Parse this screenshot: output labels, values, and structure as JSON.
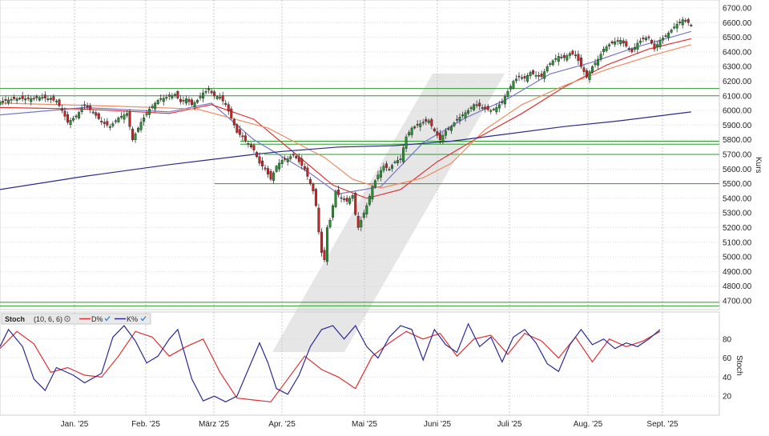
{
  "chart_data": [
    {
      "type": "candlestick",
      "y_axis_label": "Kurs",
      "x_tick_labels": [
        "Jan. '25",
        "Feb. '25",
        "März '25",
        "Apr. '25",
        "Mai '25",
        "Juni '25",
        "Juli '25",
        "Aug. '25",
        "Sept. '25"
      ],
      "y_tick_labels": [
        "4700.00",
        "4800.00",
        "4900.00",
        "5000.00",
        "5100.00",
        "5200.00",
        "5300.00",
        "5400.00",
        "5500.00",
        "5600.00",
        "5700.00",
        "5800.00",
        "5900.00",
        "6000.00",
        "6100.00",
        "6200.00",
        "6300.00",
        "6400.00",
        "6500.00",
        "6600.00",
        "6700.00"
      ],
      "ylim": [
        4680,
        6720
      ],
      "horizontal_levels": [
        6150,
        6100,
        5790,
        5770,
        5700,
        5500,
        4690,
        4665
      ],
      "close_path": [
        [
          0,
          6060
        ],
        [
          5,
          6080
        ],
        [
          10,
          6080
        ],
        [
          15,
          6090
        ],
        [
          20,
          6065
        ],
        [
          22,
          6000
        ],
        [
          24,
          5920
        ],
        [
          27,
          5960
        ],
        [
          30,
          6040
        ],
        [
          33,
          5990
        ],
        [
          36,
          5920
        ],
        [
          39,
          5890
        ],
        [
          42,
          5950
        ],
        [
          45,
          5980
        ],
        [
          47,
          5800
        ],
        [
          50,
          5920
        ],
        [
          53,
          6010
        ],
        [
          56,
          6070
        ],
        [
          59,
          6090
        ],
        [
          62,
          6110
        ],
        [
          64,
          6060
        ],
        [
          66,
          6080
        ],
        [
          68,
          6040
        ],
        [
          70,
          6070
        ],
        [
          72,
          6120
        ],
        [
          74,
          6140
        ],
        [
          76,
          6100
        ],
        [
          78,
          6090
        ],
        [
          80,
          6040
        ],
        [
          82,
          5950
        ],
        [
          84,
          5850
        ],
        [
          86,
          5820
        ],
        [
          88,
          5770
        ],
        [
          90,
          5730
        ],
        [
          92,
          5640
        ],
        [
          94,
          5600
        ],
        [
          96,
          5530
        ],
        [
          98,
          5620
        ],
        [
          100,
          5660
        ],
        [
          102,
          5670
        ],
        [
          104,
          5700
        ],
        [
          106,
          5650
        ],
        [
          108,
          5600
        ],
        [
          110,
          5500
        ],
        [
          111,
          5450
        ],
        [
          112,
          5350
        ],
        [
          113,
          5170
        ],
        [
          114,
          5030
        ],
        [
          115,
          4980
        ],
        [
          116,
          5200
        ],
        [
          117,
          5250
        ],
        [
          119,
          5450
        ],
        [
          121,
          5400
        ],
        [
          123,
          5380
        ],
        [
          125,
          5420
        ],
        [
          126,
          5290
        ],
        [
          127,
          5200
        ],
        [
          128,
          5250
        ],
        [
          130,
          5350
        ],
        [
          132,
          5480
        ],
        [
          134,
          5560
        ],
        [
          136,
          5620
        ],
        [
          138,
          5600
        ],
        [
          140,
          5650
        ],
        [
          142,
          5670
        ],
        [
          144,
          5820
        ],
        [
          146,
          5880
        ],
        [
          148,
          5900
        ],
        [
          150,
          5920
        ],
        [
          152,
          5930
        ],
        [
          154,
          5860
        ],
        [
          156,
          5800
        ],
        [
          158,
          5860
        ],
        [
          160,
          5890
        ],
        [
          162,
          5940
        ],
        [
          164,
          5970
        ],
        [
          166,
          6000
        ],
        [
          168,
          6040
        ],
        [
          170,
          6030
        ],
        [
          172,
          6010
        ],
        [
          174,
          6000
        ],
        [
          176,
          6020
        ],
        [
          178,
          6060
        ],
        [
          180,
          6130
        ],
        [
          182,
          6200
        ],
        [
          184,
          6230
        ],
        [
          186,
          6220
        ],
        [
          188,
          6260
        ],
        [
          190,
          6240
        ],
        [
          192,
          6230
        ],
        [
          194,
          6300
        ],
        [
          196,
          6340
        ],
        [
          198,
          6370
        ],
        [
          200,
          6360
        ],
        [
          202,
          6390
        ],
        [
          204,
          6380
        ],
        [
          206,
          6300
        ],
        [
          208,
          6230
        ],
        [
          210,
          6300
        ],
        [
          212,
          6350
        ],
        [
          214,
          6420
        ],
        [
          216,
          6450
        ],
        [
          218,
          6470
        ],
        [
          220,
          6480
        ],
        [
          222,
          6440
        ],
        [
          224,
          6400
        ],
        [
          226,
          6460
        ],
        [
          228,
          6490
        ],
        [
          230,
          6500
        ],
        [
          232,
          6420
        ],
        [
          234,
          6480
        ],
        [
          236,
          6510
        ],
        [
          238,
          6550
        ],
        [
          240,
          6590
        ],
        [
          242,
          6620
        ],
        [
          244,
          6600
        ],
        [
          245,
          6580
        ]
      ],
      "moving_averages": [
        {
          "color": "#7777cc",
          "period_label": "",
          "path": [
            [
              0,
              5970
            ],
            [
              30,
              6020
            ],
            [
              60,
              5990
            ],
            [
              75,
              6050
            ],
            [
              90,
              5800
            ],
            [
              110,
              5570
            ],
            [
              120,
              5430
            ],
            [
              135,
              5480
            ],
            [
              150,
              5780
            ],
            [
              165,
              5950
            ],
            [
              180,
              6080
            ],
            [
              195,
              6250
            ],
            [
              210,
              6330
            ],
            [
              225,
              6430
            ],
            [
              245,
              6540
            ]
          ]
        },
        {
          "color": "#e03030",
          "period_label": "",
          "path": [
            [
              0,
              6020
            ],
            [
              30,
              6010
            ],
            [
              60,
              5980
            ],
            [
              75,
              6040
            ],
            [
              90,
              5940
            ],
            [
              105,
              5700
            ],
            [
              118,
              5490
            ],
            [
              130,
              5400
            ],
            [
              142,
              5460
            ],
            [
              155,
              5650
            ],
            [
              170,
              5820
            ],
            [
              185,
              5980
            ],
            [
              200,
              6160
            ],
            [
              215,
              6310
            ],
            [
              230,
              6420
            ],
            [
              245,
              6490
            ]
          ]
        },
        {
          "color": "#f08a60",
          "period_label": "",
          "path": [
            [
              0,
              6050
            ],
            [
              40,
              6030
            ],
            [
              70,
              6010
            ],
            [
              95,
              5880
            ],
            [
              115,
              5680
            ],
            [
              125,
              5530
            ],
            [
              135,
              5470
            ],
            [
              150,
              5540
            ],
            [
              160,
              5640
            ],
            [
              172,
              5870
            ],
            [
              185,
              6040
            ],
            [
              200,
              6170
            ],
            [
              215,
              6280
            ],
            [
              230,
              6370
            ],
            [
              245,
              6450
            ]
          ]
        },
        {
          "color": "#2a2a8a",
          "period_label": "",
          "path": [
            [
              0,
              5460
            ],
            [
              30,
              5550
            ],
            [
              60,
              5630
            ],
            [
              90,
              5700
            ],
            [
              100,
              5720
            ],
            [
              120,
              5750
            ],
            [
              140,
              5760
            ],
            [
              160,
              5790
            ],
            [
              180,
              5840
            ],
            [
              200,
              5890
            ],
            [
              220,
              5930
            ],
            [
              245,
              5990
            ]
          ]
        }
      ]
    },
    {
      "type": "line",
      "title": "Stoch",
      "parameters": "(10, 6, 6)",
      "ylabel": "Stoch",
      "ylim": [
        0,
        100
      ],
      "y_ticks": [
        20,
        40,
        60,
        80
      ],
      "series": [
        {
          "name": "D%",
          "color": "#e03030",
          "points": [
            [
              0,
              70
            ],
            [
              6,
              88
            ],
            [
              12,
              75
            ],
            [
              18,
              45
            ],
            [
              24,
              50
            ],
            [
              30,
              42
            ],
            [
              36,
              40
            ],
            [
              42,
              62
            ],
            [
              48,
              88
            ],
            [
              54,
              82
            ],
            [
              60,
              62
            ],
            [
              66,
              72
            ],
            [
              72,
              80
            ],
            [
              78,
              45
            ],
            [
              84,
              18
            ],
            [
              90,
              16
            ],
            [
              96,
              14
            ],
            [
              102,
              38
            ],
            [
              108,
              62
            ],
            [
              114,
              48
            ],
            [
              120,
              40
            ],
            [
              126,
              28
            ],
            [
              132,
              62
            ],
            [
              138,
              76
            ],
            [
              144,
              88
            ],
            [
              150,
              80
            ],
            [
              156,
              86
            ],
            [
              162,
              62
            ],
            [
              168,
              80
            ],
            [
              174,
              84
            ],
            [
              180,
              64
            ],
            [
              186,
              86
            ],
            [
              192,
              78
            ],
            [
              198,
              60
            ],
            [
              204,
              82
            ],
            [
              210,
              56
            ],
            [
              216,
              80
            ],
            [
              222,
              72
            ],
            [
              228,
              78
            ],
            [
              234,
              88
            ]
          ]
        },
        {
          "name": "K%",
          "color": "#2a2a9a",
          "points": [
            [
              0,
              72
            ],
            [
              3,
              90
            ],
            [
              8,
              72
            ],
            [
              12,
              38
            ],
            [
              16,
              26
            ],
            [
              20,
              50
            ],
            [
              26,
              42
            ],
            [
              30,
              34
            ],
            [
              36,
              44
            ],
            [
              40,
              82
            ],
            [
              44,
              94
            ],
            [
              48,
              78
            ],
            [
              52,
              55
            ],
            [
              56,
              62
            ],
            [
              60,
              80
            ],
            [
              63,
              90
            ],
            [
              68,
              38
            ],
            [
              72,
              15
            ],
            [
              76,
              20
            ],
            [
              80,
              14
            ],
            [
              84,
              20
            ],
            [
              88,
              48
            ],
            [
              92,
              76
            ],
            [
              95,
              55
            ],
            [
              98,
              28
            ],
            [
              102,
              22
            ],
            [
              106,
              42
            ],
            [
              110,
              72
            ],
            [
              114,
              90
            ],
            [
              118,
              94
            ],
            [
              122,
              80
            ],
            [
              126,
              94
            ],
            [
              130,
              72
            ],
            [
              134,
              60
            ],
            [
              138,
              82
            ],
            [
              142,
              94
            ],
            [
              146,
              90
            ],
            [
              150,
              58
            ],
            [
              154,
              90
            ],
            [
              158,
              74
            ],
            [
              162,
              66
            ],
            [
              166,
              96
            ],
            [
              170,
              72
            ],
            [
              174,
              82
            ],
            [
              178,
              56
            ],
            [
              182,
              82
            ],
            [
              186,
              90
            ],
            [
              190,
              76
            ],
            [
              194,
              54
            ],
            [
              198,
              46
            ],
            [
              202,
              74
            ],
            [
              206,
              90
            ],
            [
              210,
              74
            ],
            [
              214,
              80
            ],
            [
              218,
              70
            ],
            [
              222,
              76
            ],
            [
              226,
              72
            ],
            [
              230,
              80
            ],
            [
              234,
              90
            ]
          ]
        }
      ]
    }
  ]
}
